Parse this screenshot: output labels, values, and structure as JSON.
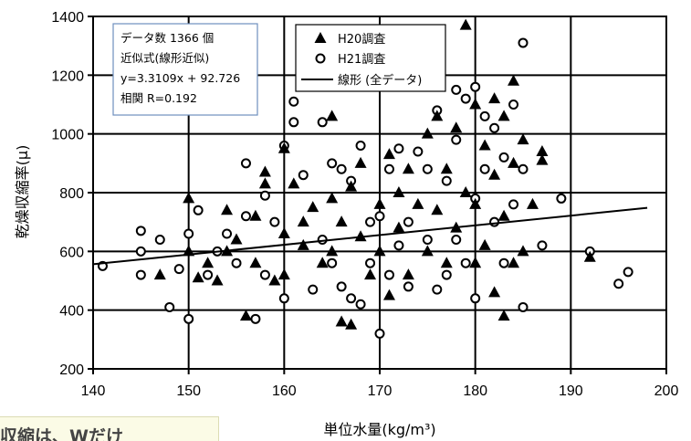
{
  "chart_data": {
    "type": "scatter",
    "xlabel": "単位水量(kg/m³)",
    "ylabel": "乾燥収縮率(μ)",
    "xlim": [
      140,
      200
    ],
    "ylim": [
      200,
      1400
    ],
    "x_ticks": [
      "140",
      "150",
      "160",
      "170",
      "180",
      "190",
      "200"
    ],
    "y_ticks": [
      "200",
      "400",
      "600",
      "800",
      "1000",
      "1200",
      "1400"
    ],
    "grid": true,
    "legend_position": "top-center",
    "series": [
      {
        "name": "H20調査",
        "marker": "filled-triangle",
        "color": "#000000",
        "points": [
          [
            147,
            520
          ],
          [
            150,
            780
          ],
          [
            150,
            600
          ],
          [
            151,
            510
          ],
          [
            152,
            560
          ],
          [
            153,
            500
          ],
          [
            154,
            740
          ],
          [
            154,
            600
          ],
          [
            155,
            640
          ],
          [
            156,
            380
          ],
          [
            157,
            560
          ],
          [
            157,
            720
          ],
          [
            158,
            830
          ],
          [
            158,
            870
          ],
          [
            159,
            500
          ],
          [
            160,
            950
          ],
          [
            160,
            660
          ],
          [
            160,
            520
          ],
          [
            161,
            830
          ],
          [
            162,
            700
          ],
          [
            162,
            620
          ],
          [
            163,
            750
          ],
          [
            164,
            560
          ],
          [
            165,
            1060
          ],
          [
            165,
            780
          ],
          [
            165,
            600
          ],
          [
            166,
            360
          ],
          [
            166,
            700
          ],
          [
            167,
            350
          ],
          [
            167,
            820
          ],
          [
            168,
            900
          ],
          [
            168,
            650
          ],
          [
            169,
            520
          ],
          [
            170,
            760
          ],
          [
            170,
            600
          ],
          [
            171,
            930
          ],
          [
            171,
            450
          ],
          [
            172,
            800
          ],
          [
            172,
            680
          ],
          [
            173,
            880
          ],
          [
            173,
            520
          ],
          [
            174,
            760
          ],
          [
            175,
            1000
          ],
          [
            175,
            600
          ],
          [
            176,
            1060
          ],
          [
            176,
            740
          ],
          [
            177,
            880
          ],
          [
            177,
            560
          ],
          [
            178,
            1020
          ],
          [
            178,
            680
          ],
          [
            179,
            1370
          ],
          [
            179,
            800
          ],
          [
            180,
            1100
          ],
          [
            180,
            760
          ],
          [
            180,
            560
          ],
          [
            181,
            960
          ],
          [
            181,
            620
          ],
          [
            182,
            1120
          ],
          [
            182,
            860
          ],
          [
            182,
            460
          ],
          [
            183,
            1060
          ],
          [
            183,
            720
          ],
          [
            183,
            380
          ],
          [
            184,
            1180
          ],
          [
            184,
            900
          ],
          [
            184,
            560
          ],
          [
            185,
            980
          ],
          [
            185,
            600
          ],
          [
            186,
            760
          ],
          [
            187,
            940
          ],
          [
            187,
            910
          ],
          [
            192,
            580
          ]
        ]
      },
      {
        "name": "H21調査",
        "marker": "open-circle",
        "color": "#000000",
        "points": [
          [
            141,
            550
          ],
          [
            145,
            670
          ],
          [
            145,
            600
          ],
          [
            145,
            520
          ],
          [
            147,
            640
          ],
          [
            148,
            410
          ],
          [
            149,
            540
          ],
          [
            150,
            370
          ],
          [
            150,
            660
          ],
          [
            151,
            740
          ],
          [
            152,
            520
          ],
          [
            153,
            600
          ],
          [
            154,
            660
          ],
          [
            155,
            560
          ],
          [
            156,
            900
          ],
          [
            156,
            720
          ],
          [
            157,
            370
          ],
          [
            158,
            520
          ],
          [
            158,
            790
          ],
          [
            159,
            700
          ],
          [
            160,
            960
          ],
          [
            160,
            440
          ],
          [
            161,
            1110
          ],
          [
            161,
            1040
          ],
          [
            162,
            860
          ],
          [
            163,
            470
          ],
          [
            164,
            1040
          ],
          [
            164,
            640
          ],
          [
            165,
            900
          ],
          [
            165,
            560
          ],
          [
            166,
            880
          ],
          [
            166,
            480
          ],
          [
            167,
            840
          ],
          [
            167,
            440
          ],
          [
            168,
            960
          ],
          [
            168,
            420
          ],
          [
            169,
            700
          ],
          [
            169,
            560
          ],
          [
            170,
            720
          ],
          [
            170,
            320
          ],
          [
            171,
            880
          ],
          [
            171,
            520
          ],
          [
            172,
            950
          ],
          [
            172,
            620
          ],
          [
            173,
            700
          ],
          [
            173,
            480
          ],
          [
            174,
            940
          ],
          [
            175,
            880
          ],
          [
            175,
            640
          ],
          [
            176,
            1080
          ],
          [
            176,
            470
          ],
          [
            177,
            840
          ],
          [
            177,
            520
          ],
          [
            178,
            1150
          ],
          [
            178,
            980
          ],
          [
            178,
            640
          ],
          [
            179,
            1120
          ],
          [
            179,
            560
          ],
          [
            180,
            1160
          ],
          [
            180,
            780
          ],
          [
            180,
            440
          ],
          [
            181,
            1060
          ],
          [
            181,
            880
          ],
          [
            182,
            1020
          ],
          [
            182,
            700
          ],
          [
            183,
            920
          ],
          [
            183,
            560
          ],
          [
            184,
            1100
          ],
          [
            184,
            760
          ],
          [
            185,
            1310
          ],
          [
            185,
            880
          ],
          [
            185,
            410
          ],
          [
            187,
            620
          ],
          [
            189,
            780
          ],
          [
            192,
            600
          ],
          [
            195,
            490
          ],
          [
            196,
            530
          ]
        ]
      }
    ],
    "trendline": {
      "name": "線形 (全データ)",
      "slope": 3.3109,
      "intercept": 92.726,
      "x_range": [
        140,
        198
      ]
    },
    "stats_box": [
      "データ数  1366  個",
      "近似式(線形近似)",
      "y=3.3109x + 92.726",
      "相関  R=0.192"
    ]
  },
  "caption": "収縮は、Wだけ"
}
